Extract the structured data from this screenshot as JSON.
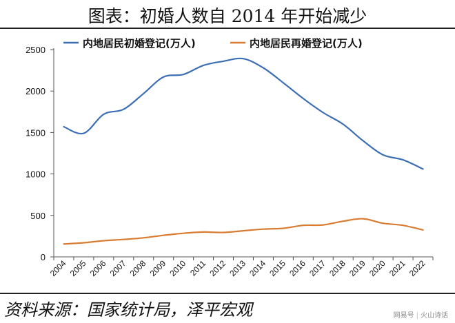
{
  "title": "图表：初婚人数自 2014 年开始减少",
  "source": "资料来源：国家统计局，泽平宏观",
  "watermark": {
    "left": "网易号",
    "right": "火山诗话"
  },
  "chart_data": {
    "type": "line",
    "x": [
      "2004",
      "2005",
      "2006",
      "2007",
      "2008",
      "2009",
      "2010",
      "2011",
      "2012",
      "2013",
      "2014",
      "2015",
      "2016",
      "2017",
      "2018",
      "2019",
      "2020",
      "2021",
      "2022"
    ],
    "ylim": [
      0,
      2500
    ],
    "yticks": [
      0,
      500,
      1000,
      1500,
      2000,
      2500
    ],
    "grid": false,
    "legend_position": "top",
    "series": [
      {
        "name": "内地居民初婚登记(万人)",
        "color": "#3c6eb4",
        "values": [
          1570,
          1490,
          1720,
          1780,
          1970,
          2170,
          2200,
          2310,
          2360,
          2390,
          2280,
          2100,
          1910,
          1740,
          1600,
          1400,
          1230,
          1170,
          1060
        ]
      },
      {
        "name": "内地居民再婚登记(万人)",
        "color": "#d97b30",
        "values": [
          155,
          170,
          195,
          210,
          230,
          260,
          285,
          300,
          295,
          315,
          335,
          345,
          380,
          385,
          430,
          460,
          405,
          380,
          325
        ]
      }
    ]
  }
}
